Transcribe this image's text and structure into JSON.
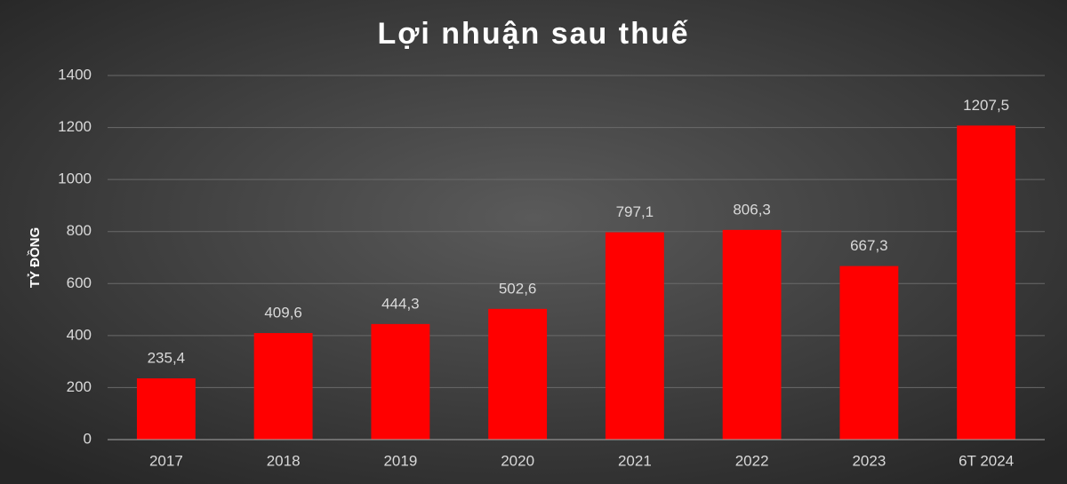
{
  "chart_data": {
    "type": "bar",
    "title": "Lợi nhuận sau thuế",
    "y_label": "TỶ ĐỒNG",
    "categories": [
      "2017",
      "2018",
      "2019",
      "2020",
      "2021",
      "2022",
      "2023",
      "6T 2024"
    ],
    "values": [
      235.4,
      409.6,
      444.3,
      502.6,
      797.1,
      806.3,
      667.3,
      1207.5
    ],
    "value_labels": [
      "235,4",
      "409,6",
      "444,3",
      "502,6",
      "797,1",
      "806,3",
      "667,3",
      "1207,5"
    ],
    "color": "#ff0000",
    "ylim": [
      0,
      1400
    ],
    "yticks": [
      0,
      200,
      400,
      600,
      800,
      1000,
      1200,
      1400
    ],
    "grid": true
  }
}
